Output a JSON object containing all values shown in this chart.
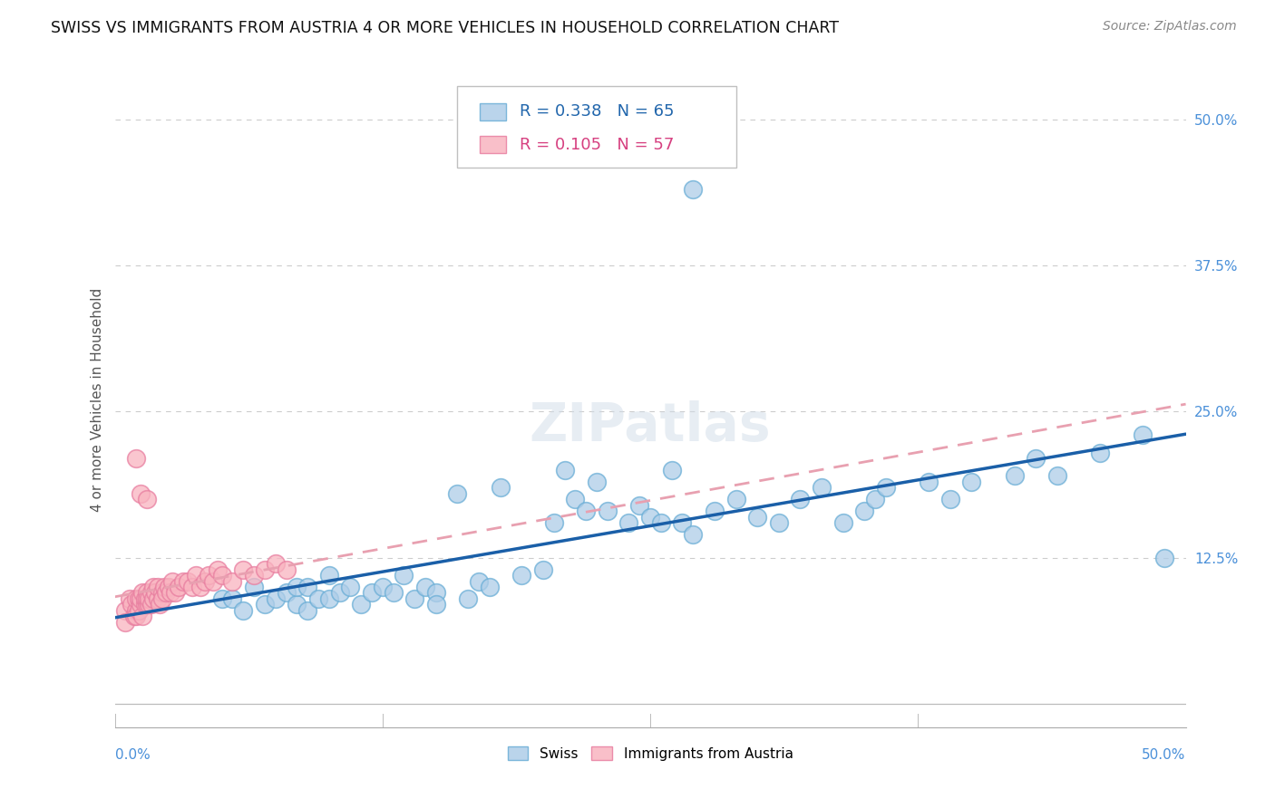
{
  "title": "SWISS VS IMMIGRANTS FROM AUSTRIA 4 OR MORE VEHICLES IN HOUSEHOLD CORRELATION CHART",
  "source": "Source: ZipAtlas.com",
  "ylabel": "4 or more Vehicles in Household",
  "yticks": [
    0.0,
    0.125,
    0.25,
    0.375,
    0.5
  ],
  "ytick_labels": [
    "",
    "12.5%",
    "25.0%",
    "37.5%",
    "50.0%"
  ],
  "xmin": 0.0,
  "xmax": 0.5,
  "ymin": -0.02,
  "ymax": 0.54,
  "swiss_R": 0.338,
  "swiss_N": 65,
  "austria_R": 0.105,
  "austria_N": 57,
  "swiss_color": "#aecde8",
  "swiss_edge_color": "#6aaed6",
  "austria_color": "#f9b4c0",
  "austria_edge_color": "#e87ea0",
  "swiss_line_color": "#1a5fa8",
  "austria_line_color": "#e8a0b0",
  "legend_label_swiss": "Swiss",
  "legend_label_austria": "Immigrants from Austria",
  "background_color": "#ffffff",
  "grid_color": "#cccccc",
  "swiss_x": [
    0.05,
    0.055,
    0.06,
    0.065,
    0.07,
    0.075,
    0.08,
    0.085,
    0.085,
    0.09,
    0.09,
    0.095,
    0.1,
    0.1,
    0.105,
    0.11,
    0.115,
    0.12,
    0.125,
    0.13,
    0.135,
    0.14,
    0.145,
    0.15,
    0.15,
    0.16,
    0.165,
    0.17,
    0.175,
    0.18,
    0.19,
    0.2,
    0.205,
    0.21,
    0.215,
    0.22,
    0.225,
    0.23,
    0.24,
    0.245,
    0.25,
    0.255,
    0.26,
    0.265,
    0.27,
    0.28,
    0.29,
    0.3,
    0.31,
    0.32,
    0.33,
    0.34,
    0.35,
    0.355,
    0.36,
    0.38,
    0.39,
    0.4,
    0.42,
    0.43,
    0.44,
    0.46,
    0.48,
    0.27,
    0.49
  ],
  "swiss_y": [
    0.09,
    0.09,
    0.08,
    0.1,
    0.085,
    0.09,
    0.095,
    0.085,
    0.1,
    0.1,
    0.08,
    0.09,
    0.11,
    0.09,
    0.095,
    0.1,
    0.085,
    0.095,
    0.1,
    0.095,
    0.11,
    0.09,
    0.1,
    0.095,
    0.085,
    0.18,
    0.09,
    0.105,
    0.1,
    0.185,
    0.11,
    0.115,
    0.155,
    0.2,
    0.175,
    0.165,
    0.19,
    0.165,
    0.155,
    0.17,
    0.16,
    0.155,
    0.2,
    0.155,
    0.145,
    0.165,
    0.175,
    0.16,
    0.155,
    0.175,
    0.185,
    0.155,
    0.165,
    0.175,
    0.185,
    0.19,
    0.175,
    0.19,
    0.195,
    0.21,
    0.195,
    0.215,
    0.23,
    0.44,
    0.125
  ],
  "austria_x": [
    0.005,
    0.005,
    0.007,
    0.008,
    0.009,
    0.01,
    0.01,
    0.01,
    0.011,
    0.011,
    0.012,
    0.012,
    0.013,
    0.013,
    0.014,
    0.014,
    0.015,
    0.015,
    0.015,
    0.016,
    0.016,
    0.017,
    0.017,
    0.018,
    0.018,
    0.019,
    0.02,
    0.02,
    0.021,
    0.022,
    0.022,
    0.023,
    0.024,
    0.025,
    0.026,
    0.027,
    0.028,
    0.03,
    0.032,
    0.034,
    0.036,
    0.038,
    0.04,
    0.042,
    0.044,
    0.046,
    0.048,
    0.05,
    0.055,
    0.06,
    0.065,
    0.07,
    0.075,
    0.08,
    0.01,
    0.012,
    0.015
  ],
  "austria_y": [
    0.08,
    0.07,
    0.09,
    0.085,
    0.075,
    0.08,
    0.075,
    0.09,
    0.09,
    0.08,
    0.085,
    0.09,
    0.075,
    0.095,
    0.085,
    0.09,
    0.095,
    0.085,
    0.09,
    0.085,
    0.09,
    0.095,
    0.085,
    0.1,
    0.09,
    0.095,
    0.09,
    0.1,
    0.085,
    0.095,
    0.09,
    0.1,
    0.095,
    0.1,
    0.095,
    0.105,
    0.095,
    0.1,
    0.105,
    0.105,
    0.1,
    0.11,
    0.1,
    0.105,
    0.11,
    0.105,
    0.115,
    0.11,
    0.105,
    0.115,
    0.11,
    0.115,
    0.12,
    0.115,
    0.21,
    0.18,
    0.175
  ]
}
